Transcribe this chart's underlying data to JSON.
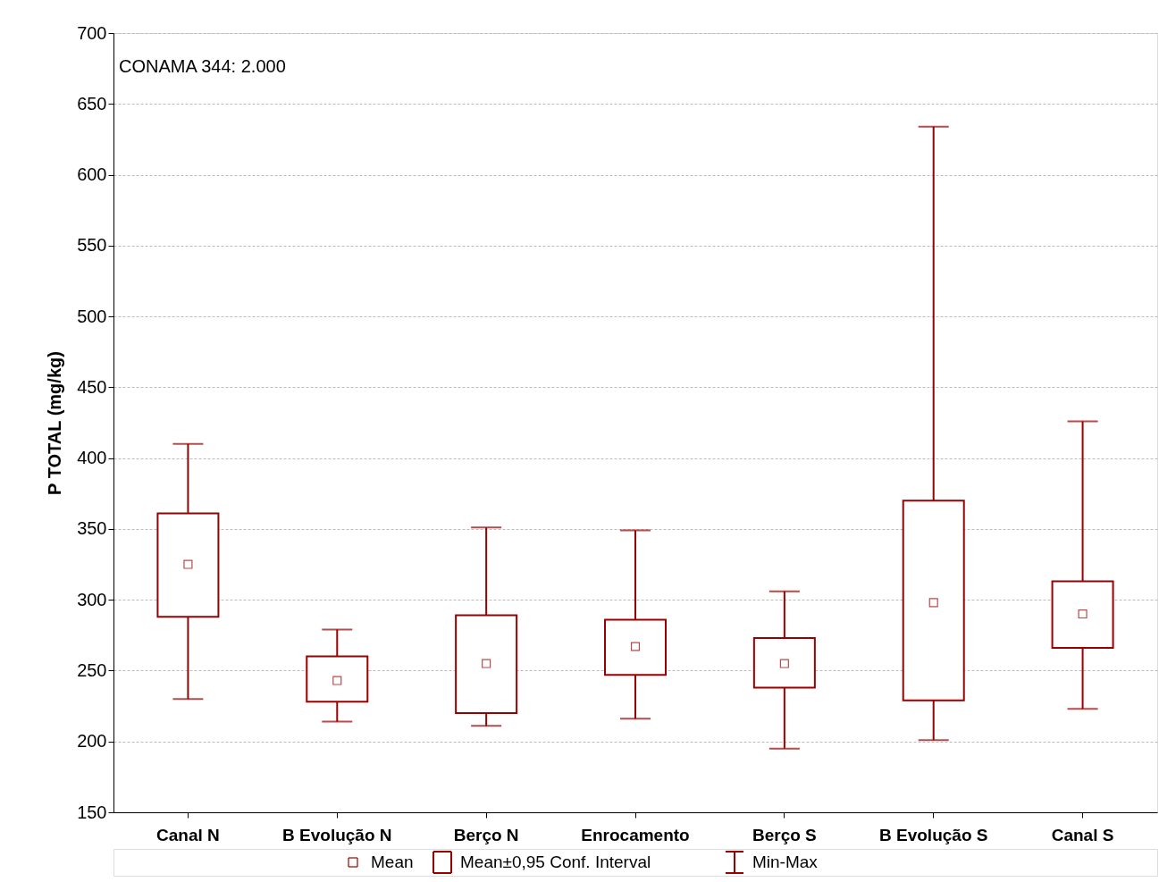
{
  "chart_data": {
    "type": "box",
    "ylabel": "P TOTAL (mg/kg)",
    "color": "#990000",
    "marker": "square",
    "categories": [
      "Canal N",
      "B Evolução N",
      "Berço N",
      "Enrocamento",
      "Berço S",
      "B Evolução S",
      "Canal S"
    ],
    "boxes": [
      {
        "low": 230,
        "q1": 288,
        "q3": 361,
        "high": 410,
        "mean": 325
      },
      {
        "low": 214,
        "q1": 228,
        "q3": 260,
        "high": 279,
        "mean": 243
      },
      {
        "low": 211,
        "q1": 220,
        "q3": 289,
        "high": 351,
        "mean": 255
      },
      {
        "low": 216,
        "q1": 247,
        "q3": 286,
        "high": 349,
        "mean": 267
      },
      {
        "low": 195,
        "q1": 238,
        "q3": 273,
        "high": 306,
        "mean": 255
      },
      {
        "low": 201,
        "q1": 229,
        "q3": 370,
        "high": 634,
        "mean": 298
      },
      {
        "low": 223,
        "q1": 266,
        "q3": 313,
        "high": 426,
        "mean": 290
      }
    ],
    "ylim": [
      150,
      700
    ],
    "yticks": [
      150,
      200,
      250,
      300,
      350,
      400,
      450,
      500,
      550,
      600,
      650,
      700
    ],
    "grid": "y",
    "annotations": [
      "CONAMA 344: 2.000",
      "Mean",
      "Mean±0,95 Conf. Interval",
      "Min-Max"
    ]
  }
}
